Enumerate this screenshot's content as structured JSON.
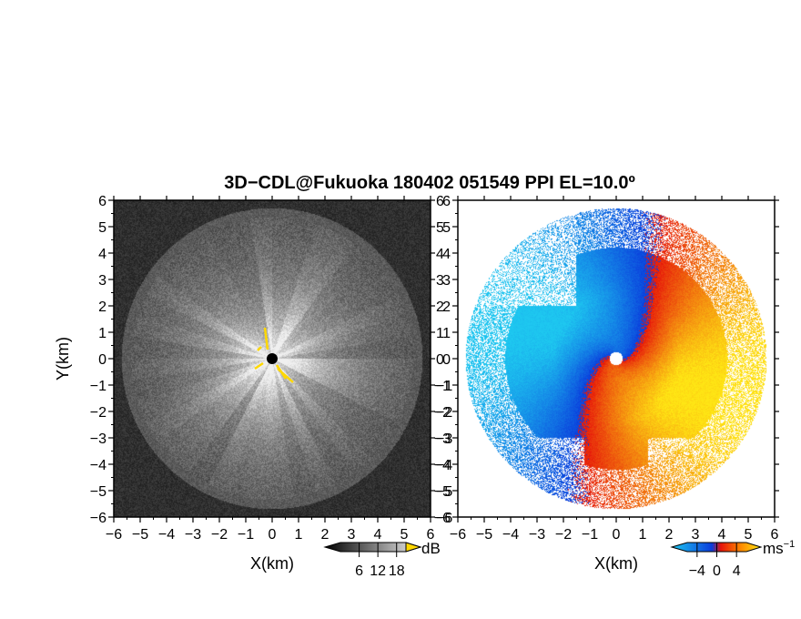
{
  "chart_data": {
    "title": "3D−CDL@Fukuoka 180402 051549 PPI EL=10.0º",
    "type": "heatmap",
    "panels": [
      {
        "variable": "reflectivity",
        "xlabel": "X(km)",
        "ylabel": "Y(km)",
        "xlim": [
          -6,
          6
        ],
        "ylim": [
          -6,
          6
        ],
        "xticks": [
          -6,
          -5,
          -4,
          -3,
          -2,
          -1,
          0,
          1,
          2,
          3,
          4,
          5,
          6
        ],
        "yticks": [
          -6,
          -5,
          -4,
          -3,
          -2,
          -1,
          0,
          1,
          2,
          3,
          4,
          5,
          6
        ],
        "max_range_km": 5.7,
        "colormap": "grayscale",
        "colorbar": {
          "unit": "dB",
          "ticks": [
            6,
            12,
            18
          ],
          "range": [
            0,
            21
          ]
        }
      },
      {
        "variable": "doppler velocity",
        "xlabel": "X(km)",
        "ylabel": "",
        "xlim": [
          -6,
          6
        ],
        "ylim": [
          -6,
          6
        ],
        "xticks": [
          -6,
          -5,
          -4,
          -3,
          -2,
          -1,
          0,
          1,
          2,
          3,
          4,
          5,
          6
        ],
        "yticks": [
          -6,
          -5,
          -4,
          -3,
          -2,
          -1,
          0,
          1,
          2,
          3,
          4,
          5,
          6
        ],
        "max_range_km": 5.7,
        "colormap": "cyan-blue-red-yellow",
        "colorbar": {
          "unit": "ms",
          "unit_exponent": "−1",
          "ticks": [
            -4,
            0,
            4
          ],
          "range": [
            -6,
            6
          ]
        }
      }
    ]
  },
  "colors": {
    "vel_neg_strong": "#1ec8f0",
    "vel_neg_weak": "#0a3cdc",
    "vel_pos_weak": "#e6140a",
    "vel_pos_strong": "#ffe614",
    "reflectivity_max": "#f0f0f0",
    "reflectivity_min": "#000000",
    "marker": "#ffd800"
  }
}
